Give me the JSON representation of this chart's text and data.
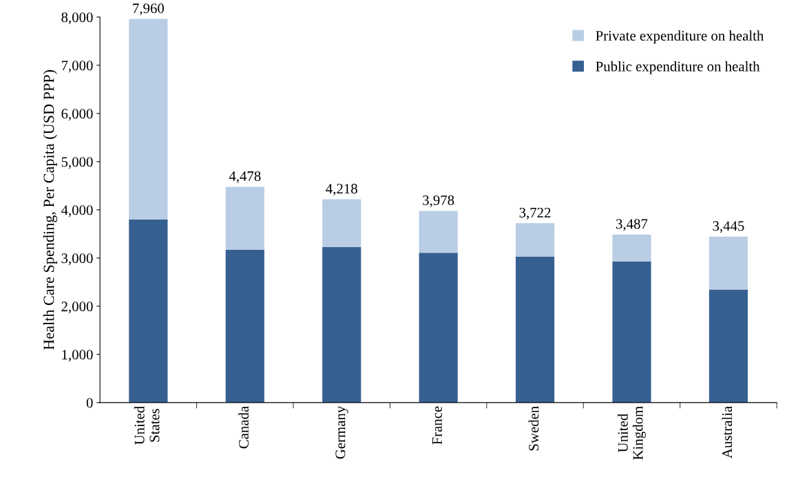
{
  "chart_data": {
    "type": "bar",
    "stacked": true,
    "ylabel": "Health Care Spending, Per Capita (USD PPP)",
    "categories": [
      "United\nStates",
      "Canada",
      "Germany",
      "France",
      "Sweden",
      "United\nKingdom",
      "Australia"
    ],
    "series": [
      {
        "name": "Public expenditure on health",
        "color": "#366092",
        "values": [
          3800,
          3170,
          3230,
          3110,
          3030,
          2930,
          2340
        ]
      },
      {
        "name": "Private expenditure on health",
        "color": "#b9cde5",
        "values": [
          4160,
          1308,
          988,
          868,
          692,
          557,
          1105
        ]
      }
    ],
    "totals": [
      "7,960",
      "4,478",
      "4,218",
      "3,978",
      "3,722",
      "3,487",
      "3,445"
    ],
    "ylim": [
      0,
      8000
    ],
    "yticks": [
      {
        "value": 0,
        "label": "0"
      },
      {
        "value": 1000,
        "label": "1,000"
      },
      {
        "value": 2000,
        "label": "2,000"
      },
      {
        "value": 3000,
        "label": "3,000"
      },
      {
        "value": 4000,
        "label": "4,000"
      },
      {
        "value": 5000,
        "label": "5,000"
      },
      {
        "value": 6000,
        "label": "6,000"
      },
      {
        "value": 7000,
        "label": "7,000"
      },
      {
        "value": 8000,
        "label": "8,000"
      }
    ],
    "grid": false,
    "legend": "top right"
  }
}
